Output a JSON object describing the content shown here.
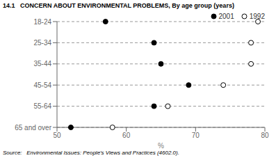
{
  "chart_data": {
    "type": "scatter",
    "orientation": "horizontal",
    "title": "14.1   CONCERN ABOUT ENVIRONMENTAL PROBLEMS, By age group (years)",
    "source": "Source:   Environmental Issues: People's Views and Practices (4602.0).",
    "categories": [
      "18-24",
      "25-34",
      "35-44",
      "45-54",
      "55-64",
      "65 and over"
    ],
    "series": [
      {
        "name": "2001",
        "color": "black",
        "values": [
          57,
          64,
          65,
          69,
          64,
          52
        ]
      },
      {
        "name": "1992",
        "color": "white",
        "values": [
          79,
          78,
          78,
          74,
          66,
          58
        ]
      }
    ],
    "xlabel": "%",
    "xlim": [
      50,
      80
    ],
    "xticks": [
      50,
      60,
      70,
      80
    ],
    "grid": true,
    "legend": "upper right"
  }
}
